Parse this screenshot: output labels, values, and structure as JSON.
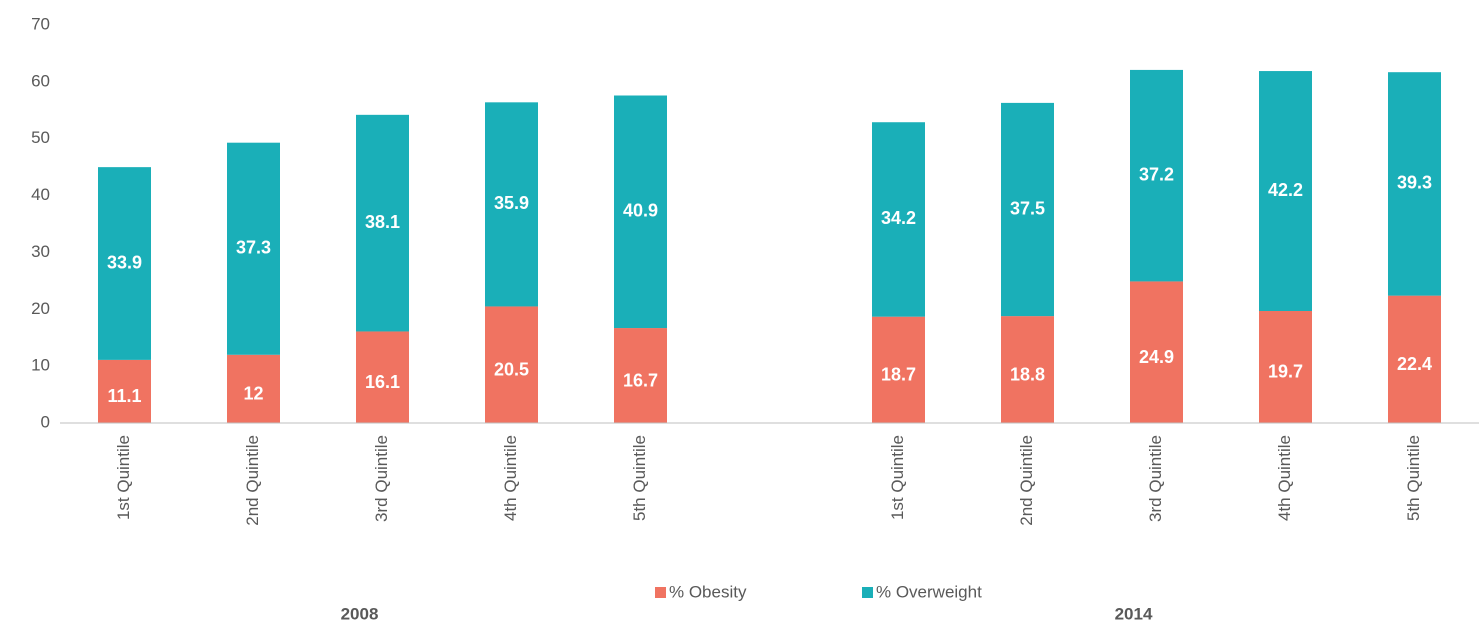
{
  "chart_data": {
    "type": "stacked_bar",
    "categories": [
      "1st Quintile",
      "2nd Quintile",
      "3rd Quintile",
      "4th Quintile",
      "5th Quintile",
      null,
      "1st Quintile",
      "2nd Quintile",
      "3rd Quintile",
      "4th Quintile",
      "5th Quintile"
    ],
    "groups": [
      "2008",
      "2014"
    ],
    "series": [
      {
        "name": "% Obesity",
        "color": "#f07361",
        "values": [
          11.1,
          12,
          16.1,
          20.5,
          16.7,
          null,
          18.7,
          18.8,
          24.9,
          19.7,
          22.4
        ]
      },
      {
        "name": "% Overweight",
        "color": "#1aafb8",
        "values": [
          33.9,
          37.3,
          38.1,
          35.9,
          40.9,
          null,
          34.2,
          37.5,
          37.2,
          42.2,
          39.3
        ]
      }
    ],
    "ylim": [
      0,
      70
    ],
    "yticks": [
      0,
      10,
      20,
      30,
      40,
      50,
      60,
      70
    ],
    "grid": false,
    "legend": "bottom"
  }
}
